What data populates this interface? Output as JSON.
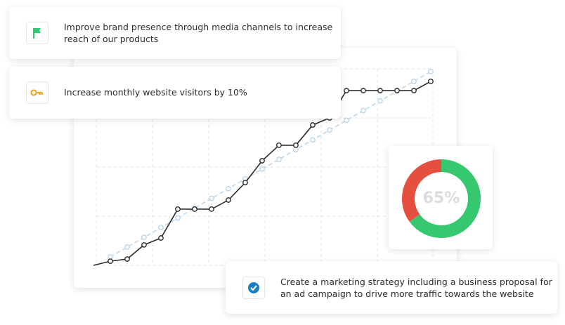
{
  "cards": [
    {
      "text": [
        "Improve brand presence through media channels to increase",
        "reach of our products"
      ]
    },
    {
      "text": [
        "Increase monthly website visitors by 10%"
      ]
    },
    {
      "text": [
        "Create a marketing strategy including a business proposal for",
        "an ad campaign to drive more traffic towards the website"
      ]
    }
  ],
  "chart_data": [
    {
      "type": "line",
      "x": [
        0,
        1,
        2,
        3,
        4,
        5,
        6,
        7,
        8,
        9,
        10,
        11,
        12,
        13,
        14,
        15,
        16,
        17,
        18,
        19,
        20
      ],
      "series": [
        {
          "color": "#b9d5ec",
          "dashed": true,
          "values": [
            null,
            4.3,
            9.3,
            14.2,
            19.2,
            24.1,
            29.1,
            34.1,
            39.0,
            44.0,
            49.0,
            53.9,
            58.9,
            63.8,
            68.8,
            73.8,
            78.7,
            83.7,
            88.7,
            93.6,
            98.6
          ]
        },
        {
          "color": "#2b2b2b",
          "dashed": false,
          "values": [
            0,
            2.1,
            3.2,
            10.4,
            13.9,
            28.6,
            28.6,
            28.6,
            33.2,
            42.1,
            53.2,
            61.1,
            61.1,
            71.4,
            75,
            88.9,
            88.9,
            88.9,
            88.9,
            88.9,
            93.6
          ]
        }
      ],
      "xlim": [
        0,
        20.125
      ],
      "xticks": [
        0.17,
        3.5,
        6.83,
        10.17,
        13.5,
        16.83,
        20.125
      ],
      "ylim": [
        0,
        100
      ],
      "yticks": [
        0,
        25,
        50,
        75,
        100
      ],
      "grid": true
    },
    {
      "type": "pie",
      "values": [
        65,
        35
      ],
      "value_labels": [
        "65%",
        null
      ],
      "colors": [
        "#35c86f",
        "#e64f3d"
      ]
    }
  ]
}
